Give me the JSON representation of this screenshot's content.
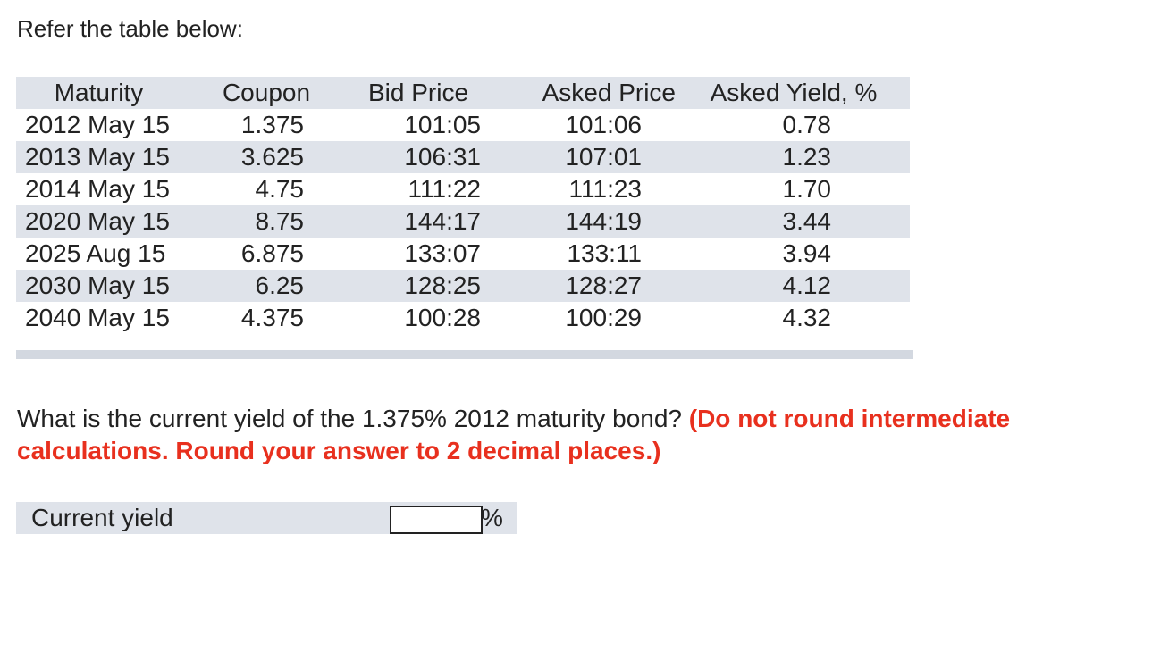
{
  "intro": "Refer the table below:",
  "table": {
    "headers": {
      "maturity": "Maturity",
      "coupon": "Coupon",
      "bid": "Bid Price",
      "asked": "Asked Price",
      "yield": "Asked Yield, %"
    },
    "rows": [
      {
        "maturity": "2012 May 15",
        "coupon": "1.375",
        "bid": "101:05",
        "asked": "101:06",
        "yield": "0.78"
      },
      {
        "maturity": "2013 May 15",
        "coupon": "3.625",
        "bid": "106:31",
        "asked": "107:01",
        "yield": "1.23"
      },
      {
        "maturity": "2014 May 15",
        "coupon": "4.75",
        "bid": "111:22",
        "asked": "111:23",
        "yield": "1.70"
      },
      {
        "maturity": "2020 May 15",
        "coupon": "8.75",
        "bid": "144:17",
        "asked": "144:19",
        "yield": "3.44"
      },
      {
        "maturity": "2025 Aug 15",
        "coupon": "6.875",
        "bid": "133:07",
        "asked": "133:11",
        "yield": "3.94"
      },
      {
        "maturity": "2030 May 15",
        "coupon": "6.25",
        "bid": "128:25",
        "asked": "128:27",
        "yield": "4.12"
      },
      {
        "maturity": "2040 May 15",
        "coupon": "4.375",
        "bid": "100:28",
        "asked": "100:29",
        "yield": "4.32"
      }
    ]
  },
  "question": {
    "text": "What is the current yield of the 1.375% 2012 maturity bond? ",
    "instruction": "(Do not round intermediate calculations. Round your answer to 2 decimal places.)"
  },
  "answer": {
    "label": "Current yield",
    "value": "",
    "unit": "%"
  },
  "colors": {
    "instruction": "#e8301e",
    "row_shade": "#dfe3ea"
  }
}
